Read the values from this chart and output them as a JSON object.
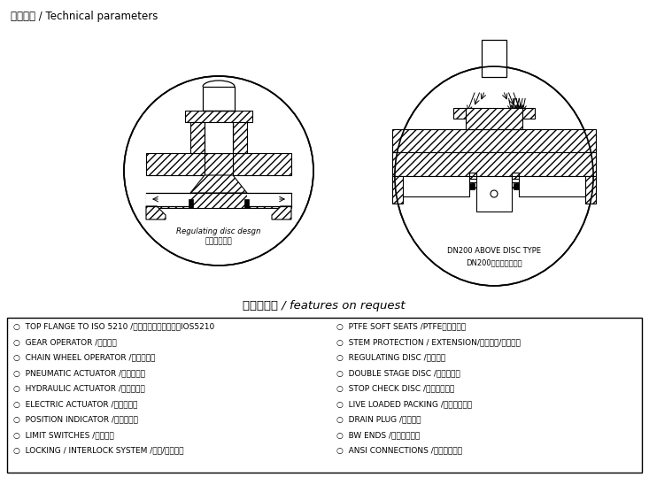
{
  "title_top": "技术参数 / Technical parameters",
  "section_title": "新功能需求 / features on request",
  "left_label1": "Regulating disc desgn",
  "left_label2": "节流阀瓣设计",
  "right_label1": "DN200 ABOVE DISC TYPE",
  "right_label2": "DN200左平衡阀瓣设计",
  "features_left_col": [
    "○  TOP FLANGE TO ISO 5210 /执行器连接法兰标准：IOS5210",
    "○  GEAR OPERATOR /齿轮操作",
    "○  CHAIN WHEEL OPERATOR /链条轮操作",
    "○  PNEUMATIC ACTUATOR /气动执行器",
    "○  HYDRAULIC ACTUATOR /液压执行器",
    "○  ELECTRIC ACTUATOR /电动执行器",
    "○  POSITION INDICATOR /位置显示器",
    "○  LIMIT SWITCHES /限位开关",
    "○  LOCKING / INTERLOCK SYSTEM /锁紧/连锁系统"
  ],
  "features_right_col": [
    "○  PTFE SOFT SEATS /PTFE软密封阀座",
    "○  STEM PROTECTION / EXTENSION/阀杆保护/延长寿命",
    "○  REGULATING DISC /节流阀瓣",
    "○  DOUBLE STAGE DISC /双阀瓣设计",
    "○  STOP CHECK DISC /止回阀瓣设计",
    "○  LIVE LOADED PACKING /填料压板设计",
    "○  DRAIN PLUG /排污堵头",
    "○  BW ENDS /对焊连接法兰",
    "○  ANSI CONNECTIONS /美标连接法兰"
  ],
  "bg_color": "#ffffff"
}
